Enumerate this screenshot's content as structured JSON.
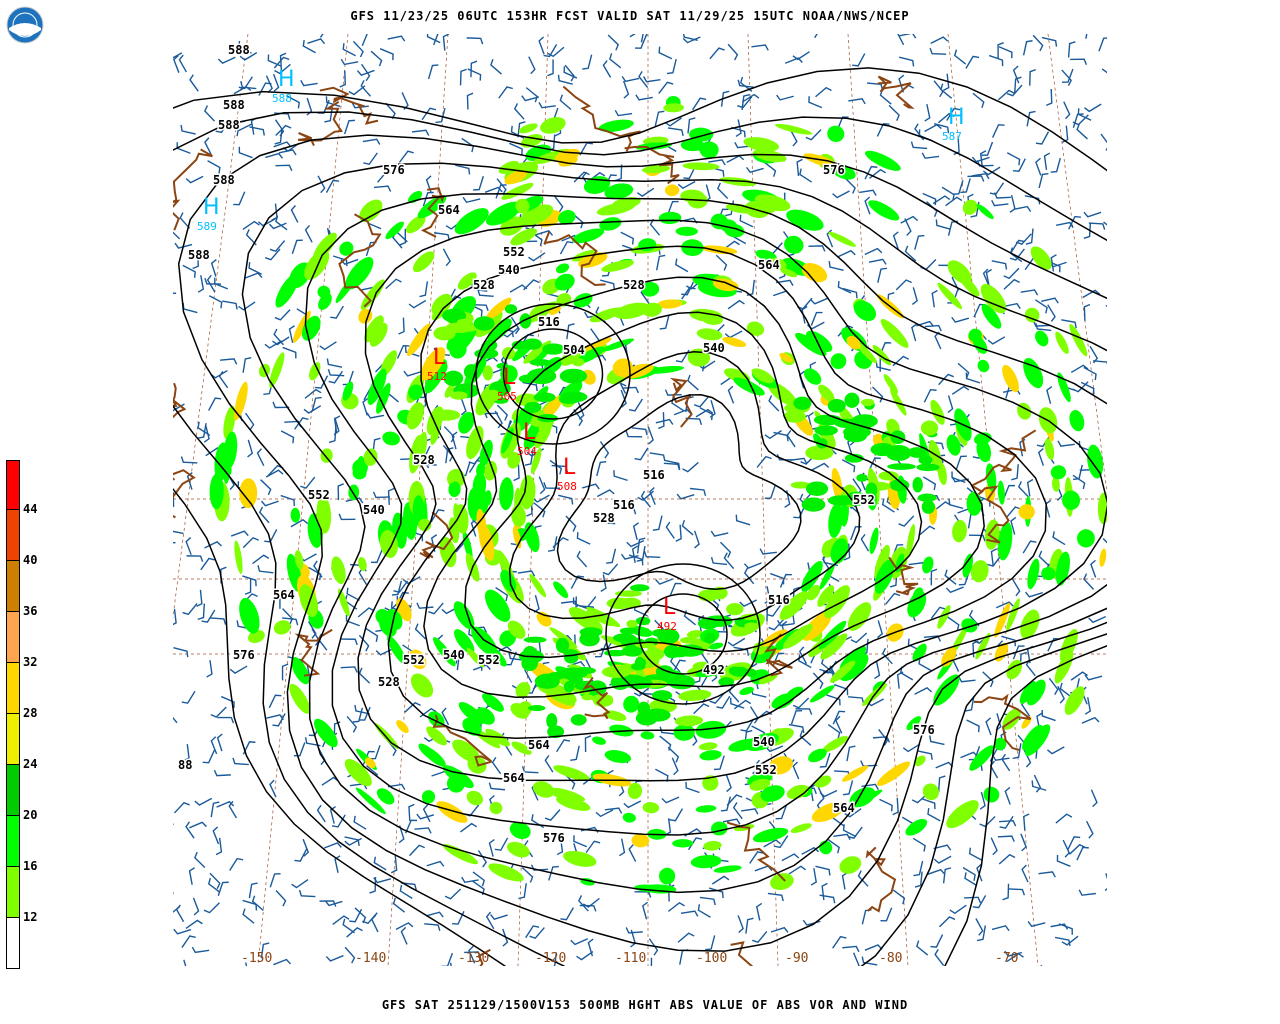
{
  "header": {
    "title": "GFS 11/23/25 06UTC 153HR FCST VALID SAT 11/29/25 15UTC NOAA/NWS/NCEP",
    "logo_text": "NOAA"
  },
  "footer": {
    "title": "GFS SAT 251129/1500V153 500MB HGHT ABS VALUE OF ABS VOR AND WIND"
  },
  "legend": {
    "bins": [
      {
        "label": "",
        "color": "#ff0000"
      },
      {
        "label": "44",
        "color": "#ee4400"
      },
      {
        "label": "40",
        "color": "#cc7f00"
      },
      {
        "label": "36",
        "color": "#ffa550"
      },
      {
        "label": "32",
        "color": "#ffd700"
      },
      {
        "label": "28",
        "color": "#eeee00"
      },
      {
        "label": "24",
        "color": "#00cc00"
      },
      {
        "label": "20",
        "color": "#00ff00"
      },
      {
        "label": "16",
        "color": "#80ff00"
      },
      {
        "label": "12",
        "color": "#ffffff"
      }
    ]
  },
  "map": {
    "longitude_labels": [
      "-150",
      "-140",
      "-130",
      "-120",
      "-110",
      "-100",
      "-90",
      "-80",
      "-70"
    ],
    "contour_labels": [
      "588",
      "588",
      "588",
      "588",
      "588",
      "576",
      "564",
      "552",
      "540",
      "528",
      "528",
      "516",
      "504",
      "492",
      "516",
      "528",
      "540",
      "552",
      "564",
      "576",
      "564",
      "552",
      "540",
      "528",
      "516",
      "516",
      "528",
      "540",
      "552",
      "564",
      "576",
      "576",
      "564",
      "540",
      "552",
      "576",
      "564",
      "552",
      "88"
    ],
    "lows": [
      {
        "symbol": "L",
        "value": "512"
      },
      {
        "symbol": "L",
        "value": "505"
      },
      {
        "symbol": "L",
        "value": "504"
      },
      {
        "symbol": "L",
        "value": "508"
      },
      {
        "symbol": "L",
        "value": "492"
      }
    ],
    "highs": [
      {
        "symbol": "H",
        "value": "588"
      },
      {
        "symbol": "H",
        "value": "589"
      },
      {
        "symbol": "H",
        "value": "587"
      }
    ],
    "colors": {
      "contour": "#000000",
      "barbs": "#1a5a9a",
      "coast": "#8b4513",
      "grid": "#a0522d",
      "low": "#ff0000",
      "high": "#00bfff"
    }
  }
}
